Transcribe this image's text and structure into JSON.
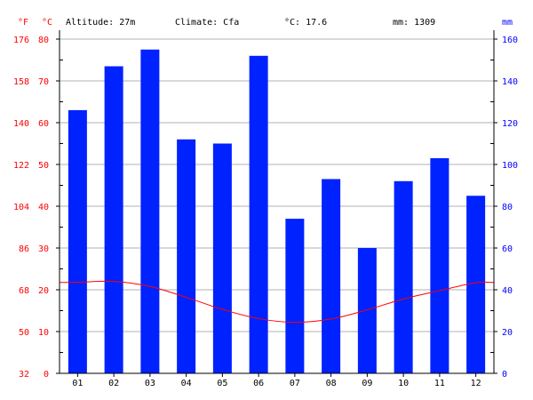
{
  "header": {
    "altitude": "Altitude: 27m",
    "climate": "Climate: Cfa",
    "avg_temp": "°C: 17.6",
    "precip": "mm: 1309"
  },
  "colors": {
    "temperature_axis": "#ff0000",
    "precip_axis": "#0000ff",
    "bars": "#0022ff",
    "temperature_line": "#ff0000",
    "grid": "#b0b0b0"
  },
  "chart_data": {
    "type": "bar",
    "categories": [
      "01",
      "02",
      "03",
      "04",
      "05",
      "06",
      "07",
      "08",
      "09",
      "10",
      "11",
      "12"
    ],
    "series": [
      {
        "values": [
          126,
          147,
          155,
          112,
          110,
          152,
          74,
          93,
          60,
          92,
          103,
          85
        ]
      },
      {
        "values": [
          21.8,
          22.0,
          20.8,
          18.2,
          15.3,
          13.1,
          12.2,
          13.0,
          15.2,
          17.8,
          19.8,
          21.7
        ]
      }
    ],
    "y_left_c": {
      "unit": "°C",
      "ticks": [
        0,
        10,
        20,
        30,
        40,
        50,
        60,
        70,
        80
      ],
      "range": [
        0,
        80
      ]
    },
    "y_left_f": {
      "unit": "°F",
      "ticks": [
        32,
        50,
        68,
        86,
        104,
        122,
        140,
        158,
        176
      ]
    },
    "y_right": {
      "unit": "mm",
      "ticks": [
        0,
        20,
        40,
        60,
        80,
        100,
        120,
        140,
        160
      ],
      "range": [
        0,
        160
      ]
    },
    "grid": true
  }
}
